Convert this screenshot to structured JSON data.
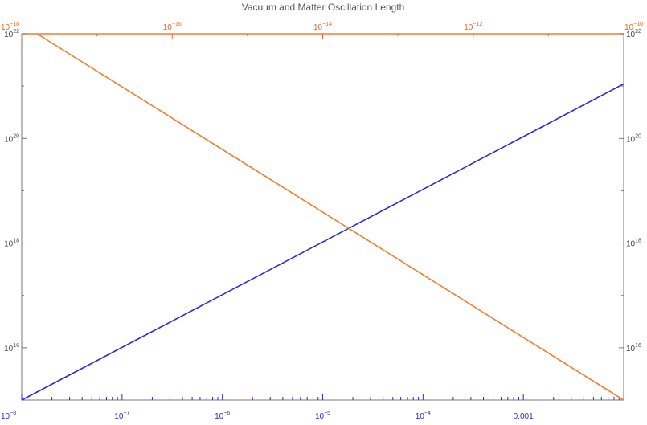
{
  "chart_data": {
    "type": "line",
    "title": "Vacuum and Matter Oscillation Length",
    "xlabel": "",
    "ylabel": "",
    "xscale": "log",
    "yscale": "log",
    "x_bottom_lim": [
      1e-08,
      0.01
    ],
    "x_top_lim": [
      1e-18,
      1e-10
    ],
    "ylim": [
      1000000000000000.0,
      1e+22
    ],
    "grid": false,
    "legend": "none",
    "x_bottom_ticks": [
      {
        "base": "10",
        "exp": "−8"
      },
      {
        "base": "10",
        "exp": "−7"
      },
      {
        "base": "10",
        "exp": "−6"
      },
      {
        "base": "10",
        "exp": "−5"
      },
      {
        "base": "10",
        "exp": "−4"
      },
      {
        "text": "0.001"
      }
    ],
    "x_top_ticks": [
      {
        "base": "10",
        "exp": "−18"
      },
      {
        "base": "10",
        "exp": "−16"
      },
      {
        "base": "10",
        "exp": "−14"
      },
      {
        "base": "10",
        "exp": "−12"
      },
      {
        "base": "10",
        "exp": "−10"
      }
    ],
    "y_ticks": [
      {
        "base": "10",
        "exp": "16"
      },
      {
        "base": "10",
        "exp": "18"
      },
      {
        "base": "10",
        "exp": "20"
      },
      {
        "base": "10",
        "exp": "22"
      }
    ],
    "series": [
      {
        "axis": "bottom",
        "color": "#2a2ae0",
        "x": [
          1e-08,
          0.01
        ],
        "y": [
          1000000000000000.0,
          1.1e+21
        ]
      },
      {
        "axis": "top",
        "color": "#f07f32",
        "x": [
          1.6e-18,
          1e-10
        ],
        "y": [
          1e+22,
          1000000000000000.0
        ]
      }
    ],
    "colors": {
      "bottom_axis": "#2a2ae0",
      "top_axis": "#e8672a",
      "frame": "#777777",
      "top_frame": "#f07f32"
    }
  }
}
